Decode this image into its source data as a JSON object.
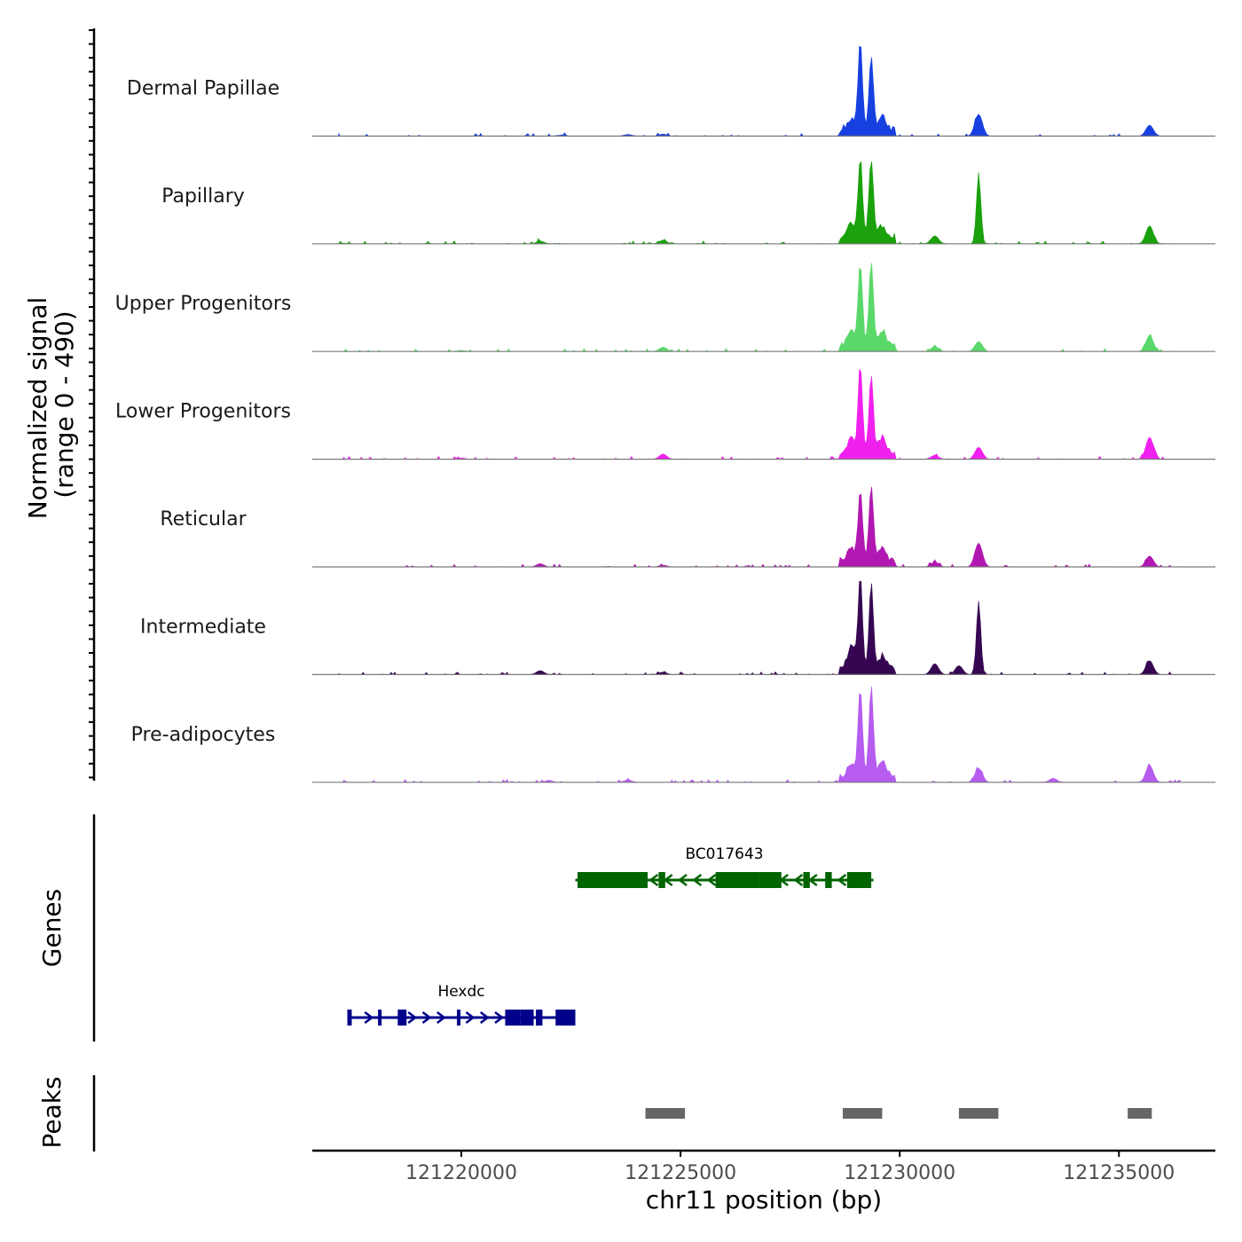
{
  "chart_data": {
    "type": "coverage",
    "chromosome": "chr11",
    "xlabel": "chr11 position (bp)",
    "x_range": [
      121216600,
      121237200
    ],
    "x_ticks": [
      121220000,
      121225000,
      121230000,
      121235000
    ],
    "x_tick_labels": [
      "121220000",
      "121225000",
      "121230000",
      "121235000"
    ],
    "coverage_ylabel": [
      "Normalized signal",
      "(range 0 - 490)"
    ],
    "y_range": [
      0,
      490
    ],
    "tracks": [
      {
        "name": "Dermal Papillae",
        "color": "#1740e0",
        "peaks": [
          [
            121222300,
            6
          ],
          [
            121223800,
            8
          ],
          [
            121224600,
            10
          ],
          [
            121228900,
            60
          ],
          [
            121229100,
            440
          ],
          [
            121229350,
            360
          ],
          [
            121229600,
            70
          ],
          [
            121231800,
            110
          ],
          [
            121235700,
            55
          ]
        ]
      },
      {
        "name": "Papillary",
        "color": "#1aa10c",
        "peaks": [
          [
            121217300,
            3
          ],
          [
            121221800,
            14
          ],
          [
            121224600,
            18
          ],
          [
            121228900,
            75
          ],
          [
            121229100,
            400
          ],
          [
            121229350,
            400
          ],
          [
            121229600,
            60
          ],
          [
            121230800,
            40
          ],
          [
            121231800,
            350
          ],
          [
            121235700,
            90
          ]
        ]
      },
      {
        "name": "Upper Progenitors",
        "color": "#5ad86a",
        "peaks": [
          [
            121220000,
            5
          ],
          [
            121224600,
            22
          ],
          [
            121228900,
            70
          ],
          [
            121229100,
            415
          ],
          [
            121229350,
            425
          ],
          [
            121229600,
            70
          ],
          [
            121230800,
            25
          ],
          [
            121231800,
            50
          ],
          [
            121235700,
            80
          ]
        ]
      },
      {
        "name": "Lower Progenitors",
        "color": "#f020ee",
        "peaks": [
          [
            121220000,
            6
          ],
          [
            121224600,
            26
          ],
          [
            121228900,
            75
          ],
          [
            121229100,
            435
          ],
          [
            121229350,
            385
          ],
          [
            121229600,
            80
          ],
          [
            121230800,
            20
          ],
          [
            121231800,
            60
          ],
          [
            121235700,
            110
          ]
        ]
      },
      {
        "name": "Reticular",
        "color": "#b118b1",
        "peaks": [
          [
            121221800,
            16
          ],
          [
            121224600,
            8
          ],
          [
            121228900,
            65
          ],
          [
            121229100,
            355
          ],
          [
            121229350,
            390
          ],
          [
            121229600,
            60
          ],
          [
            121230800,
            25
          ],
          [
            121231800,
            120
          ],
          [
            121235700,
            55
          ]
        ]
      },
      {
        "name": "Intermediate",
        "color": "#360652",
        "peaks": [
          [
            121221800,
            20
          ],
          [
            121224600,
            12
          ],
          [
            121228900,
            120
          ],
          [
            121229100,
            460
          ],
          [
            121229350,
            425
          ],
          [
            121229600,
            60
          ],
          [
            121230800,
            55
          ],
          [
            121231350,
            45
          ],
          [
            121231800,
            370
          ],
          [
            121235700,
            70
          ]
        ]
      },
      {
        "name": "Pre-adipocytes",
        "color": "#b65cf0",
        "peaks": [
          [
            121222000,
            10
          ],
          [
            121223800,
            12
          ],
          [
            121228900,
            65
          ],
          [
            121229100,
            430
          ],
          [
            121229350,
            445
          ],
          [
            121229600,
            80
          ],
          [
            121231800,
            70
          ],
          [
            121233500,
            20
          ],
          [
            121235700,
            85
          ]
        ]
      }
    ],
    "genes_label": "Genes",
    "genes": [
      {
        "name": "Hexdc",
        "strand": "+",
        "color": "#00008b",
        "start": 121217400,
        "end": 121222600,
        "exons": [
          [
            121217400,
            121217500
          ],
          [
            121218100,
            121218150
          ],
          [
            121218550,
            121218750
          ],
          [
            121219900,
            121219950
          ],
          [
            121221000,
            121221350
          ],
          [
            121221350,
            121221650
          ],
          [
            121221700,
            121221850
          ],
          [
            121222150,
            121222600
          ]
        ]
      },
      {
        "name": "BC017643",
        "strand": "-",
        "color": "#006400",
        "start": 121222600,
        "end": 121229400,
        "exons": [
          [
            121222650,
            121224250
          ],
          [
            121224500,
            121224650
          ],
          [
            121225800,
            121226800
          ],
          [
            121226800,
            121227300
          ],
          [
            121227800,
            121227950
          ],
          [
            121228300,
            121228450
          ],
          [
            121228800,
            121229350
          ]
        ]
      }
    ],
    "peaks_label": "Peaks",
    "peak_regions": [
      [
        121224200,
        121225100
      ],
      [
        121228700,
        121229600
      ],
      [
        121231350,
        121232250
      ],
      [
        121235200,
        121235750
      ]
    ]
  }
}
